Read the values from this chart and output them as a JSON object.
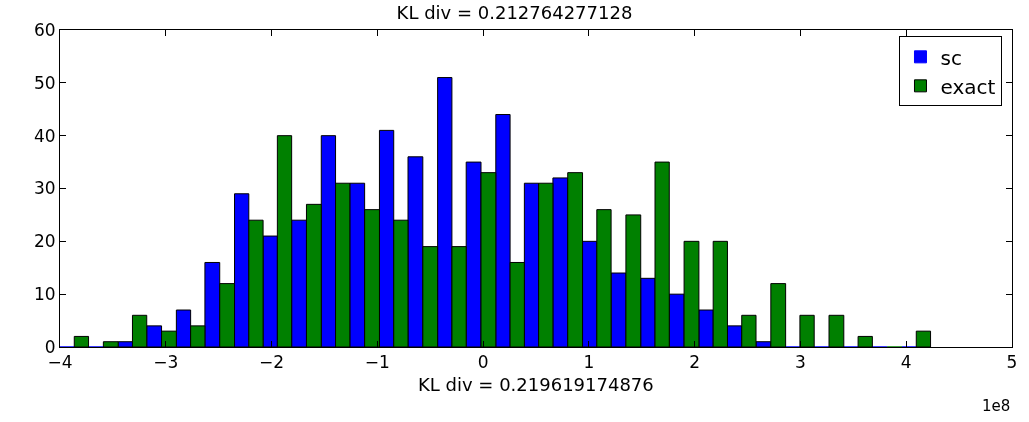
{
  "chart_data": {
    "type": "histogram",
    "title": "KL div = 0.212764277128",
    "bins": [
      -4,
      -3.73,
      -3.45,
      -3.18,
      -2.9,
      -2.63,
      -2.35,
      -2.08,
      -1.81,
      -1.53,
      -1.26,
      -0.98,
      -0.71,
      -0.43,
      -0.16,
      0.12,
      0.39,
      0.66,
      0.94,
      1.21,
      1.49,
      1.76,
      2.04,
      2.31,
      2.58,
      2.86,
      3.13,
      3.41,
      3.68,
      3.96,
      4.23
    ],
    "series": [
      {
        "name": "sc",
        "color": "#0000ff",
        "values": [
          0,
          0,
          1,
          4,
          7,
          16,
          29,
          21,
          24,
          40,
          31,
          41,
          36,
          51,
          35,
          44,
          31,
          32,
          20,
          14,
          13,
          10,
          7,
          4,
          1,
          0,
          0,
          0,
          0,
          0
        ]
      },
      {
        "name": "exact",
        "color": "#008000",
        "values": [
          2,
          1,
          6,
          3,
          4,
          12,
          24,
          40,
          27,
          31,
          26,
          24,
          19,
          19,
          33,
          16,
          31,
          33,
          26,
          25,
          35,
          20,
          20,
          6,
          12,
          6,
          6,
          2,
          0,
          3
        ]
      }
    ],
    "xlim": [
      -4,
      5
    ],
    "xticks": [
      {
        "value": -4,
        "label": "−4"
      },
      {
        "value": -3,
        "label": "−3"
      },
      {
        "value": -2,
        "label": "−2"
      },
      {
        "value": -1,
        "label": "−1"
      },
      0,
      1,
      2,
      3,
      4,
      5
    ],
    "ylim": [
      0,
      60
    ],
    "yticks": [
      0,
      10,
      20,
      30,
      40,
      50,
      60
    ],
    "legend": "top right",
    "grid": false,
    "annotations": [
      "1e8",
      "KL div = 0.219619174876"
    ]
  }
}
